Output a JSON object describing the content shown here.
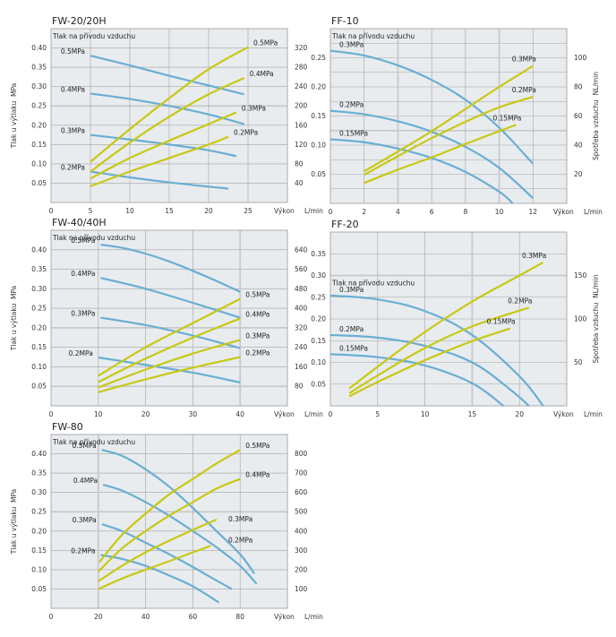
{
  "colors": {
    "pressure_curve": "#6aaed3",
    "consumption_curve": "#c8c814",
    "plot_background": "#e8ecef",
    "grid": "#a3a3a3",
    "grid_minor": "#c9c9c9",
    "frame": "#9a9a9a"
  },
  "chart_data": [
    {
      "type": "line",
      "title": "FW-20/20H",
      "subtitle": "Tlak na přívodu vzduchu",
      "xlabel": "Výkon",
      "xunit": "L/min",
      "ylabel": "Tlak u výtlaku  MPa",
      "ylabel_right": "",
      "xlim": [
        0,
        30
      ],
      "ylim": [
        0,
        0.45
      ],
      "x_ticks": [
        "0",
        "5",
        "10",
        "15",
        "20",
        "25"
      ],
      "x_tick_values": [
        0,
        5,
        10,
        15,
        20,
        25
      ],
      "y_ticks": [
        "0.05",
        "0.10",
        "0.15",
        "0.20",
        "0.25",
        "0.30",
        "0.35",
        "0.40"
      ],
      "y_tick_values": [
        0.05,
        0.1,
        0.15,
        0.2,
        0.25,
        0.3,
        0.35,
        0.4
      ],
      "y_right_ticks": [
        "40",
        "80",
        "120",
        "160",
        "200",
        "240",
        "280",
        "320"
      ],
      "highlight_y": [
        0.25
      ],
      "highlight_x": [],
      "grid": true,
      "series": [
        {
          "name": "0.5MPa",
          "kind": "pressure",
          "label": "0.5MPa",
          "label_side": "left",
          "x": [
            5,
            10,
            15,
            20,
            24.5
          ],
          "y": [
            0.38,
            0.355,
            0.328,
            0.303,
            0.28
          ]
        },
        {
          "name": "0.4MPa",
          "kind": "pressure",
          "label": "0.4MPa",
          "label_side": "left",
          "x": [
            5,
            10,
            15,
            20,
            24.5
          ],
          "y": [
            0.282,
            0.268,
            0.25,
            0.228,
            0.203
          ]
        },
        {
          "name": "0.3MPa",
          "kind": "pressure",
          "label": "0.3MPa",
          "label_side": "left",
          "x": [
            5,
            10,
            15,
            20,
            23.5
          ],
          "y": [
            0.175,
            0.163,
            0.15,
            0.135,
            0.12
          ]
        },
        {
          "name": "0.2MPa",
          "kind": "pressure",
          "label": "0.2MPa",
          "label_side": "left",
          "x": [
            5,
            10,
            15,
            20,
            22.5
          ],
          "y": [
            0.08,
            0.065,
            0.052,
            0.041,
            0.036
          ]
        },
        {
          "name": "0.5MPa",
          "kind": "consumption",
          "label": "0.5MPa",
          "label_side": "right",
          "x": [
            5,
            10,
            15,
            20,
            25
          ],
          "y": [
            0.105,
            0.19,
            0.27,
            0.345,
            0.402
          ]
        },
        {
          "name": "0.4MPa",
          "kind": "consumption",
          "label": "0.4MPa",
          "label_side": "right",
          "x": [
            5,
            10,
            15,
            20,
            24.5
          ],
          "y": [
            0.08,
            0.155,
            0.222,
            0.28,
            0.322
          ]
        },
        {
          "name": "0.3MPa",
          "kind": "consumption",
          "label": "0.3MPa",
          "label_side": "right",
          "x": [
            5,
            10,
            15,
            20,
            23.5
          ],
          "y": [
            0.062,
            0.115,
            0.16,
            0.203,
            0.233
          ]
        },
        {
          "name": "0.2MPa",
          "kind": "consumption",
          "label": "0.2MPa",
          "label_side": "right",
          "x": [
            5,
            10,
            15,
            20,
            22.5
          ],
          "y": [
            0.042,
            0.08,
            0.115,
            0.15,
            0.17
          ]
        }
      ]
    },
    {
      "type": "line",
      "title": "FF-10",
      "subtitle": "Tlak na přívodu vzduchu",
      "xlabel": "Výkon",
      "xunit": "L/min",
      "ylabel": "",
      "ylabel_right": "Spotřeba vzduchu  NL/min",
      "xlim": [
        0,
        14
      ],
      "ylim": [
        0,
        0.3
      ],
      "x_ticks": [
        "0",
        "2",
        "4",
        "6",
        "8",
        "10",
        "12"
      ],
      "x_tick_values": [
        0,
        2,
        4,
        6,
        8,
        10,
        12
      ],
      "y_ticks": [
        "0.05",
        "0.10",
        "0.15",
        "0.20",
        "0.25"
      ],
      "y_tick_values": [
        0.05,
        0.1,
        0.15,
        0.2,
        0.25
      ],
      "y_right_ticks": [
        "20",
        "40",
        "60",
        "80",
        "100"
      ],
      "minor_y": [
        0.025,
        0.075,
        0.125,
        0.175,
        0.225,
        0.275
      ],
      "highlight_y": [
        0.125
      ],
      "highlight_x": [
        4,
        10
      ],
      "grid": true,
      "series": [
        {
          "name": "0.3MPa",
          "kind": "pressure",
          "label": "0.3MPa",
          "label_side": "left",
          "x": [
            0,
            2,
            4,
            6,
            8,
            10,
            12
          ],
          "y": [
            0.262,
            0.254,
            0.237,
            0.212,
            0.178,
            0.13,
            0.068
          ]
        },
        {
          "name": "0.2MPa",
          "kind": "pressure",
          "label": "0.2MPa",
          "label_side": "left",
          "x": [
            0,
            2,
            4,
            6,
            8,
            10,
            12
          ],
          "y": [
            0.159,
            0.153,
            0.141,
            0.123,
            0.097,
            0.061,
            0.009
          ]
        },
        {
          "name": "0.15MPa",
          "kind": "pressure",
          "label": "0.15MPa",
          "label_side": "left",
          "x": [
            0,
            2,
            4,
            6,
            8,
            10,
            10.8
          ],
          "y": [
            0.11,
            0.105,
            0.094,
            0.078,
            0.054,
            0.02,
            0.0
          ]
        },
        {
          "name": "0.3MPa",
          "kind": "consumption",
          "label": "0.3MPa",
          "label_side": "right",
          "x": [
            2,
            4,
            6,
            8,
            10,
            12
          ],
          "y": [
            0.055,
            0.089,
            0.124,
            0.162,
            0.2,
            0.236
          ]
        },
        {
          "name": "0.2MPa",
          "kind": "consumption",
          "label": "0.2MPa",
          "label_side": "right",
          "x": [
            2,
            4,
            6,
            8,
            10,
            12
          ],
          "y": [
            0.049,
            0.081,
            0.112,
            0.14,
            0.165,
            0.183
          ]
        },
        {
          "name": "0.15MPa",
          "kind": "consumption",
          "label": "0.15MPa",
          "label_side": "right",
          "x": [
            2,
            4,
            6,
            8,
            10,
            11
          ],
          "y": [
            0.035,
            0.058,
            0.079,
            0.102,
            0.124,
            0.135
          ]
        }
      ]
    },
    {
      "type": "line",
      "title": "FW-40/40H",
      "subtitle": "Tlak na přívodu vzduchu",
      "xlabel": "Výkon",
      "xunit": "L/min",
      "ylabel": "Tlak u výtlaku  MPa",
      "ylabel_right": "",
      "xlim": [
        0,
        50
      ],
      "ylim": [
        0,
        0.45
      ],
      "x_ticks": [
        "0",
        "10",
        "20",
        "30",
        "40"
      ],
      "x_tick_values": [
        0,
        10,
        20,
        30,
        40
      ],
      "y_ticks": [
        "0.05",
        "0.10",
        "0.15",
        "0.20",
        "0.25",
        "0.30",
        "0.35",
        "0.40"
      ],
      "y_tick_values": [
        0.05,
        0.1,
        0.15,
        0.2,
        0.25,
        0.3,
        0.35,
        0.4
      ],
      "y_right_ticks": [
        "80",
        "160",
        "240",
        "320",
        "400",
        "480",
        "560",
        "640"
      ],
      "highlight_y": [
        0.05,
        0.2
      ],
      "highlight_x": [
        40
      ],
      "grid": true,
      "series": [
        {
          "name": "0.5MPa",
          "kind": "pressure",
          "label": "0.5MPa",
          "label_side": "left",
          "x": [
            10.5,
            15,
            20,
            25,
            30,
            35,
            40
          ],
          "y": [
            0.413,
            0.405,
            0.39,
            0.37,
            0.346,
            0.32,
            0.292
          ]
        },
        {
          "name": "0.4MPa",
          "kind": "pressure",
          "label": "0.4MPa",
          "label_side": "left",
          "x": [
            10.5,
            20,
            30,
            40
          ],
          "y": [
            0.328,
            0.3,
            0.264,
            0.226
          ]
        },
        {
          "name": "0.3MPa",
          "kind": "pressure",
          "label": "0.3MPa",
          "label_side": "left",
          "x": [
            10.5,
            20,
            30,
            40
          ],
          "y": [
            0.226,
            0.207,
            0.18,
            0.148
          ]
        },
        {
          "name": "0.2MPa",
          "kind": "pressure",
          "label": "0.2MPa",
          "label_side": "left",
          "x": [
            10,
            20,
            30,
            40
          ],
          "y": [
            0.124,
            0.105,
            0.085,
            0.06
          ]
        },
        {
          "name": "0.5MPa",
          "kind": "consumption",
          "label": "0.5MPa",
          "label_side": "right",
          "x": [
            10,
            20,
            30,
            40
          ],
          "y": [
            0.077,
            0.15,
            0.212,
            0.274
          ]
        },
        {
          "name": "0.4MPa",
          "kind": "consumption",
          "label": "0.4MPa",
          "label_side": "right",
          "x": [
            10,
            20,
            30,
            40
          ],
          "y": [
            0.061,
            0.121,
            0.175,
            0.224
          ]
        },
        {
          "name": "0.3MPa",
          "kind": "consumption",
          "label": "0.3MPa",
          "label_side": "right",
          "x": [
            10,
            20,
            30,
            40
          ],
          "y": [
            0.047,
            0.093,
            0.134,
            0.169
          ]
        },
        {
          "name": "0.2MPa",
          "kind": "consumption",
          "label": "0.2MPa",
          "label_side": "right",
          "x": [
            10,
            20,
            30,
            40
          ],
          "y": [
            0.035,
            0.068,
            0.098,
            0.125
          ]
        }
      ]
    },
    {
      "type": "line",
      "title": "FF-20",
      "subtitle": "Tlak na přívodu vzduchu",
      "xlabel": "Výkon",
      "xunit": "L/min",
      "ylabel": "",
      "ylabel_right": "Spotřeba vzduchu  NL/min",
      "xlim": [
        0,
        25
      ],
      "ylim": [
        0,
        0.4
      ],
      "x_ticks": [
        "0",
        "5",
        "10",
        "15",
        "20"
      ],
      "x_tick_values": [
        0,
        5,
        10,
        15,
        20
      ],
      "y_ticks": [
        "0.05",
        "0.10",
        "0.15",
        "0.20",
        "0.25",
        "0.30",
        "0.35"
      ],
      "y_tick_values": [
        0.05,
        0.1,
        0.15,
        0.2,
        0.25,
        0.3,
        0.35
      ],
      "y_right_ticks": [
        "50",
        "100",
        "150"
      ],
      "y_right_tick_values": [
        0.1,
        0.2,
        0.3
      ],
      "highlight_y": [
        0.3
      ],
      "highlight_x": [
        15
      ],
      "grid": true,
      "series": [
        {
          "name": "0.3MPa",
          "kind": "pressure",
          "label": "0.3MPa",
          "label_side": "left",
          "x": [
            0,
            5,
            10,
            15,
            20,
            22.5
          ],
          "y": [
            0.254,
            0.245,
            0.218,
            0.163,
            0.068,
            0.0
          ]
        },
        {
          "name": "0.2MPa",
          "kind": "pressure",
          "label": "0.2MPa",
          "label_side": "left",
          "x": [
            0,
            5,
            10,
            15,
            19,
            21
          ],
          "y": [
            0.163,
            0.157,
            0.138,
            0.1,
            0.038,
            0.0
          ]
        },
        {
          "name": "0.15MPa",
          "kind": "pressure",
          "label": "0.15MPa",
          "label_side": "left",
          "x": [
            0,
            5,
            10,
            15,
            18.3
          ],
          "y": [
            0.119,
            0.112,
            0.093,
            0.052,
            0.0
          ]
        },
        {
          "name": "0.3MPa",
          "kind": "consumption",
          "label": "0.3MPa",
          "label_side": "right",
          "x": [
            2,
            5,
            10,
            15,
            20,
            22.5
          ],
          "y": [
            0.04,
            0.09,
            0.17,
            0.24,
            0.3,
            0.33
          ]
        },
        {
          "name": "0.2MPa",
          "kind": "consumption",
          "label": "0.2MPa",
          "label_side": "right",
          "x": [
            2,
            5,
            10,
            15,
            21
          ],
          "y": [
            0.029,
            0.07,
            0.133,
            0.183,
            0.226
          ]
        },
        {
          "name": "0.15MPa",
          "kind": "consumption",
          "label": "0.15MPa",
          "label_side": "right",
          "x": [
            2,
            5,
            10,
            15,
            19
          ],
          "y": [
            0.022,
            0.055,
            0.105,
            0.149,
            0.178
          ]
        }
      ]
    },
    {
      "type": "line",
      "title": "FW-80",
      "subtitle": "Tlak na přívodu vzduchu",
      "xlabel": "Výkon",
      "xunit": "L/min",
      "ylabel": "Tlak u výtlaku  MPa",
      "ylabel_right": "",
      "xlim": [
        0,
        100
      ],
      "ylim": [
        0,
        0.45
      ],
      "x_ticks": [
        "0",
        "20",
        "40",
        "60",
        "80"
      ],
      "x_tick_values": [
        0,
        20,
        40,
        60,
        80
      ],
      "y_ticks": [
        "0.05",
        "0.10",
        "0.15",
        "0.20",
        "0.25",
        "0.30",
        "0.35",
        "0.40"
      ],
      "y_tick_values": [
        0.05,
        0.1,
        0.15,
        0.2,
        0.25,
        0.3,
        0.35,
        0.4
      ],
      "y_right_ticks": [
        "100",
        "200",
        "300",
        "400",
        "500",
        "600",
        "700",
        "800"
      ],
      "highlight_y": [
        0.25
      ],
      "highlight_x": [
        20
      ],
      "grid": true,
      "series": [
        {
          "name": "0.5MPa",
          "kind": "pressure",
          "label": "0.5MPa",
          "label_side": "left",
          "x": [
            21.5,
            30,
            40,
            50,
            60,
            70,
            80,
            86
          ],
          "y": [
            0.41,
            0.395,
            0.36,
            0.315,
            0.26,
            0.2,
            0.14,
            0.09
          ]
        },
        {
          "name": "0.4MPa",
          "kind": "pressure",
          "label": "0.4MPa",
          "label_side": "left",
          "x": [
            22,
            30,
            40,
            50,
            60,
            70,
            80,
            87
          ],
          "y": [
            0.32,
            0.305,
            0.275,
            0.24,
            0.2,
            0.158,
            0.11,
            0.063
          ]
        },
        {
          "name": "0.3MPa",
          "kind": "pressure",
          "label": "0.3MPa",
          "label_side": "left",
          "x": [
            21.5,
            30,
            40,
            50,
            60,
            70,
            76.5
          ],
          "y": [
            0.218,
            0.2,
            0.17,
            0.14,
            0.107,
            0.072,
            0.05
          ]
        },
        {
          "name": "0.2MPa",
          "kind": "pressure",
          "label": "0.2MPa",
          "label_side": "left",
          "x": [
            21,
            30,
            40,
            50,
            60,
            71
          ],
          "y": [
            0.138,
            0.128,
            0.11,
            0.085,
            0.057,
            0.015
          ]
        },
        {
          "name": "0.5MPa",
          "kind": "consumption",
          "label": "0.5MPa",
          "label_side": "right",
          "x": [
            20.5,
            30,
            40,
            50,
            60,
            70,
            80
          ],
          "y": [
            0.12,
            0.19,
            0.245,
            0.295,
            0.335,
            0.375,
            0.41
          ]
        },
        {
          "name": "0.4MPa",
          "kind": "consumption",
          "label": "0.4MPa",
          "label_side": "right",
          "x": [
            20,
            30,
            40,
            50,
            60,
            70,
            80
          ],
          "y": [
            0.095,
            0.155,
            0.2,
            0.24,
            0.275,
            0.31,
            0.335
          ]
        },
        {
          "name": "0.3MPa",
          "kind": "consumption",
          "label": "0.3MPa",
          "label_side": "right",
          "x": [
            20,
            30,
            40,
            50,
            60,
            70
          ],
          "y": [
            0.07,
            0.11,
            0.145,
            0.175,
            0.203,
            0.23
          ]
        },
        {
          "name": "0.2MPa",
          "kind": "consumption",
          "label": "0.2MPa",
          "label_side": "right",
          "x": [
            20,
            30,
            40,
            50,
            60,
            67.5
          ],
          "y": [
            0.05,
            0.077,
            0.1,
            0.122,
            0.145,
            0.162
          ]
        }
      ]
    }
  ]
}
